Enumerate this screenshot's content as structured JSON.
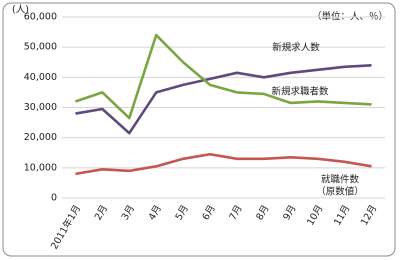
{
  "chart_data": {
    "type": "line",
    "unit_left": "(人)",
    "unit_right": "（単位：人、％）",
    "categories": [
      "2011年1月",
      "2月",
      "3月",
      "4月",
      "5月",
      "6月",
      "7月",
      "8月",
      "9月",
      "10月",
      "11月",
      "12月"
    ],
    "series": [
      {
        "name": "新規求人数",
        "color": "#5f4a7e",
        "values": [
          28000,
          29500,
          21500,
          35000,
          37500,
          39500,
          41500,
          40000,
          41500,
          42500,
          43500,
          44000
        ]
      },
      {
        "name": "新規求職者数",
        "color": "#79a640",
        "values": [
          32000,
          35000,
          26500,
          54000,
          45000,
          37500,
          35000,
          34500,
          31500,
          32000,
          31500,
          31000
        ]
      },
      {
        "name": "就職件数",
        "sublabel": "（原数値）",
        "color": "#c55651",
        "values": [
          8000,
          9500,
          9000,
          10500,
          13000,
          14500,
          13000,
          13000,
          13500,
          13000,
          12000,
          10500
        ]
      }
    ],
    "ylim": [
      0,
      60000
    ],
    "yticks": [
      {
        "value": 0,
        "label": "0"
      },
      {
        "value": 10000,
        "label": "10,000"
      },
      {
        "value": 20000,
        "label": "20,000"
      },
      {
        "value": 30000,
        "label": "30,000"
      },
      {
        "value": 40000,
        "label": "40,000"
      },
      {
        "value": 50000,
        "label": "50,000"
      },
      {
        "value": 60000,
        "label": "60,000"
      }
    ],
    "grid": true
  }
}
